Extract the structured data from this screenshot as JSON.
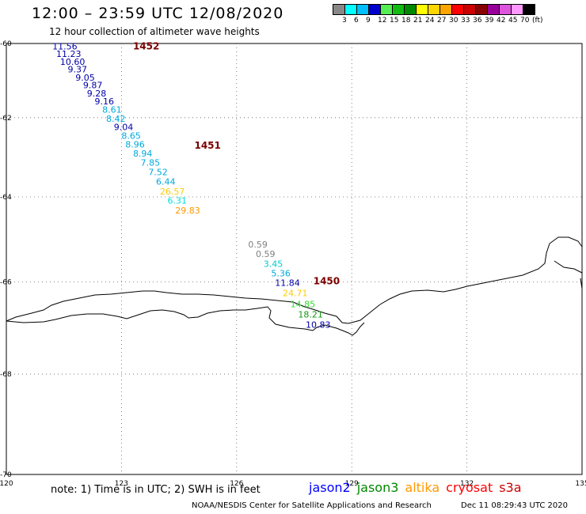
{
  "header": {
    "title": "12:00 – 23:59 UTC 12/08/2020",
    "subtitle": "12 hour collection of altimeter wave heights"
  },
  "legend": {
    "colors": [
      "#888888",
      "#00ffff",
      "#00bfff",
      "#0000cd",
      "#55ee55",
      "#11bb11",
      "#008800",
      "#ffff00",
      "#ffd700",
      "#ffa500",
      "#ff0000",
      "#cc0000",
      "#880000",
      "#990099",
      "#dd55dd",
      "#ff99ff",
      "#000000"
    ],
    "labels": [
      "3",
      "6",
      "9",
      "12",
      "15",
      "18",
      "21",
      "24",
      "27",
      "30",
      "33",
      "36",
      "39",
      "42",
      "45",
      "70",
      "(ft)"
    ]
  },
  "axes": {
    "lon_ticks": [
      "120",
      "123",
      "126",
      "129",
      "132",
      "135"
    ],
    "lat_ticks": [
      "-60",
      "-62",
      "-64",
      "-66",
      "-68",
      "-70"
    ]
  },
  "track_labels": [
    {
      "text": "1452",
      "color": "#7a0000",
      "lon": 123.3,
      "lat": -60.08
    },
    {
      "text": "1451",
      "color": "#7a0000",
      "lon": 124.9,
      "lat": -62.72
    },
    {
      "text": "1450",
      "color": "#7a0000",
      "lon": 128.0,
      "lat": -65.98
    }
  ],
  "wave_heights": [
    {
      "text": "11.56",
      "color": "#0000aa",
      "lon": 121.2,
      "lat": -60.08
    },
    {
      "text": "11.23",
      "color": "#0000aa",
      "lon": 121.3,
      "lat": -60.29
    },
    {
      "text": "10.60",
      "color": "#0000aa",
      "lon": 121.4,
      "lat": -60.5
    },
    {
      "text": "9.37",
      "color": "#0000aa",
      "lon": 121.6,
      "lat": -60.71
    },
    {
      "text": "9.05",
      "color": "#0000aa",
      "lon": 121.8,
      "lat": -60.93
    },
    {
      "text": "9.87",
      "color": "#0000aa",
      "lon": 122.0,
      "lat": -61.14
    },
    {
      "text": "9.28",
      "color": "#0000aa",
      "lon": 122.1,
      "lat": -61.36
    },
    {
      "text": "9.16",
      "color": "#0000aa",
      "lon": 122.3,
      "lat": -61.57
    },
    {
      "text": "8.61",
      "color": "#00aadd",
      "lon": 122.5,
      "lat": -61.79
    },
    {
      "text": "8.42",
      "color": "#00aadd",
      "lon": 122.6,
      "lat": -62.02
    },
    {
      "text": "9.04",
      "color": "#0000aa",
      "lon": 122.8,
      "lat": -62.24
    },
    {
      "text": "8.65",
      "color": "#00aadd",
      "lon": 123.0,
      "lat": -62.47
    },
    {
      "text": "8.96",
      "color": "#00aadd",
      "lon": 123.1,
      "lat": -62.69
    },
    {
      "text": "8.94",
      "color": "#00aadd",
      "lon": 123.3,
      "lat": -62.92
    },
    {
      "text": "7.85",
      "color": "#00aadd",
      "lon": 123.5,
      "lat": -63.15
    },
    {
      "text": "7.52",
      "color": "#00aadd",
      "lon": 123.7,
      "lat": -63.39
    },
    {
      "text": "6.44",
      "color": "#00aadd",
      "lon": 123.9,
      "lat": -63.62
    },
    {
      "text": "26.57",
      "color": "#ffcc00",
      "lon": 124.0,
      "lat": -63.86
    },
    {
      "text": "6.31",
      "color": "#00dddd",
      "lon": 124.2,
      "lat": -64.09
    },
    {
      "text": "29.83",
      "color": "#ff9900",
      "lon": 124.4,
      "lat": -64.33
    },
    {
      "text": "0.59",
      "color": "#808080",
      "lon": 126.3,
      "lat": -65.13
    },
    {
      "text": "0.59",
      "color": "#808080",
      "lon": 126.5,
      "lat": -65.35
    },
    {
      "text": "3.45",
      "color": "#00cccc",
      "lon": 126.7,
      "lat": -65.58
    },
    {
      "text": "5.36",
      "color": "#00aadd",
      "lon": 126.9,
      "lat": -65.8
    },
    {
      "text": "11.84",
      "color": "#0000aa",
      "lon": 127.0,
      "lat": -66.02
    },
    {
      "text": "24.71",
      "color": "#ffcc00",
      "lon": 127.2,
      "lat": -66.25
    },
    {
      "text": "14.85",
      "color": "#33dd33",
      "lon": 127.4,
      "lat": -66.49
    },
    {
      "text": "18.21",
      "color": "#119911",
      "lon": 127.6,
      "lat": -66.72
    },
    {
      "text": "10.83",
      "color": "#0000aa",
      "lon": 127.8,
      "lat": -66.95
    }
  ],
  "footer": {
    "note": "note: 1) Time is in UTC; 2) SWH is in feet",
    "satellites": [
      {
        "name": "jason2",
        "color": "#0000ff"
      },
      {
        "name": "jason3",
        "color": "#008800"
      },
      {
        "name": "altika",
        "color": "#ff9900"
      },
      {
        "name": "cryosat",
        "color": "#ff0000"
      },
      {
        "name": "s3a",
        "color": "#cc0000"
      }
    ],
    "credit": "NOAA/NESDIS Center for Satellite Applications and Research",
    "timestamp": "Dec 11 08:29:43 UTC 2020"
  }
}
